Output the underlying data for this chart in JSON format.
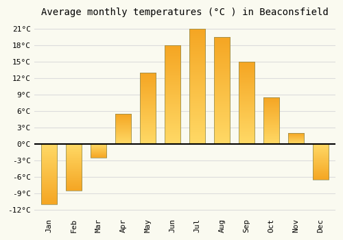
{
  "title": "Average monthly temperatures (°C ) in Beaconsfield",
  "months": [
    "Jan",
    "Feb",
    "Mar",
    "Apr",
    "May",
    "Jun",
    "Jul",
    "Aug",
    "Sep",
    "Oct",
    "Nov",
    "Dec"
  ],
  "temperatures": [
    -11,
    -8.5,
    -2.5,
    5.5,
    13,
    18,
    21,
    19.5,
    15,
    8.5,
    2,
    -6.5
  ],
  "bar_color_top": "#FFD966",
  "bar_color_bottom": "#F5A623",
  "bar_edge_color": "#888855",
  "background_color": "#FAFAF0",
  "plot_background": "#FAFAF0",
  "grid_color": "#DCDCDC",
  "yticks": [
    -12,
    -9,
    -6,
    -3,
    0,
    3,
    6,
    9,
    12,
    15,
    18,
    21
  ],
  "ylim": [
    -13,
    22.5
  ],
  "title_fontsize": 10,
  "tick_fontsize": 8,
  "zero_line_color": "#000000"
}
